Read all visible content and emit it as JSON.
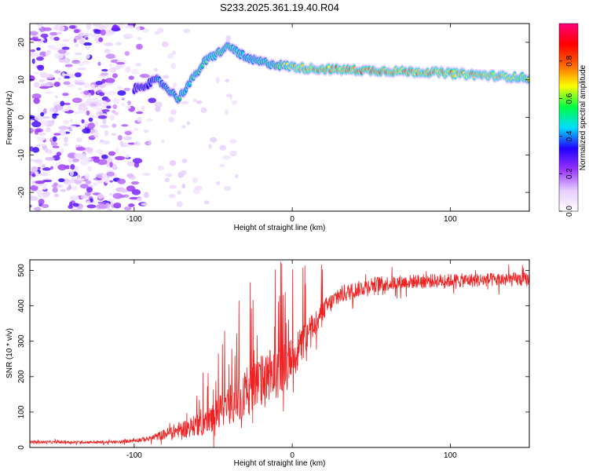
{
  "title": "S233.2025.361.19.40.R04",
  "chart_data": [
    {
      "type": "heatmap",
      "xlabel": "Height of straight line (km)",
      "ylabel": "Frequency (Hz)",
      "xlim": [
        -166,
        150
      ],
      "ylim": [
        -25,
        25
      ],
      "xticks": [
        -100,
        0,
        100
      ],
      "yticks": [
        -20,
        -10,
        0,
        10,
        20
      ],
      "colorbar": {
        "label": "Normalized spectral amplitude",
        "ticks": [
          0.0,
          0.2,
          0.4,
          0.6,
          0.8
        ],
        "range": [
          0,
          1
        ],
        "stops": [
          "#ffffff",
          "#e6ccff",
          "#9933ff",
          "#2200ff",
          "#00ddff",
          "#00ff44",
          "#ffff00",
          "#ff6600",
          "#ff0000",
          "#ff0077"
        ]
      },
      "ridge": [
        {
          "x": -100,
          "y": 7.5,
          "amp": 0.35
        },
        {
          "x": -85,
          "y": 10.0,
          "amp": 0.45
        },
        {
          "x": -72,
          "y": 5.0,
          "amp": 0.55
        },
        {
          "x": -55,
          "y": 15.0,
          "amp": 0.6
        },
        {
          "x": -40,
          "y": 19.0,
          "amp": 0.6
        },
        {
          "x": -28,
          "y": 15.5,
          "amp": 0.55
        },
        {
          "x": -10,
          "y": 14.0,
          "amp": 0.6
        },
        {
          "x": 10,
          "y": 13.0,
          "amp": 0.85
        },
        {
          "x": 50,
          "y": 12.5,
          "amp": 0.9
        },
        {
          "x": 90,
          "y": 12.0,
          "amp": 0.85
        },
        {
          "x": 130,
          "y": 11.0,
          "amp": 0.8
        },
        {
          "x": 150,
          "y": 10.5,
          "amp": 0.7
        }
      ]
    },
    {
      "type": "line",
      "xlabel": "Height of straight line (km)",
      "ylabel": "SNR (10 * v/v)",
      "xlim": [
        -166,
        150
      ],
      "ylim": [
        0,
        530
      ],
      "xticks": [
        -100,
        0,
        100
      ],
      "yticks": [
        0,
        100,
        200,
        300,
        400,
        500
      ],
      "color": "#ee2222",
      "trend": [
        {
          "x": -166,
          "y": 15,
          "noise": 8
        },
        {
          "x": -110,
          "y": 15,
          "noise": 8
        },
        {
          "x": -90,
          "y": 25,
          "noise": 15
        },
        {
          "x": -75,
          "y": 45,
          "noise": 40
        },
        {
          "x": -55,
          "y": 70,
          "noise": 70
        },
        {
          "x": -40,
          "y": 120,
          "noise": 110
        },
        {
          "x": -25,
          "y": 170,
          "noise": 150
        },
        {
          "x": -10,
          "y": 210,
          "noise": 160
        },
        {
          "x": 0,
          "y": 250,
          "noise": 120
        },
        {
          "x": 10,
          "y": 320,
          "noise": 90
        },
        {
          "x": 20,
          "y": 390,
          "noise": 60
        },
        {
          "x": 30,
          "y": 430,
          "noise": 50
        },
        {
          "x": 50,
          "y": 460,
          "noise": 45
        },
        {
          "x": 80,
          "y": 470,
          "noise": 40
        },
        {
          "x": 150,
          "y": 475,
          "noise": 40
        }
      ]
    }
  ]
}
